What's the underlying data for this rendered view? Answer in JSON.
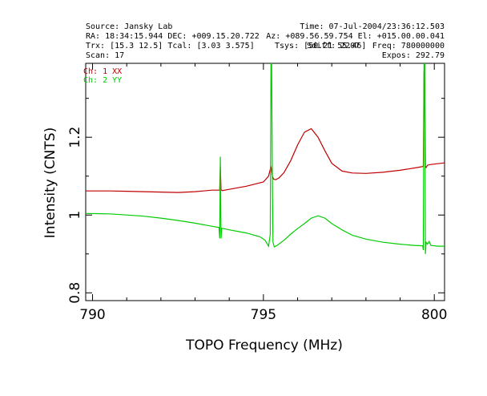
{
  "header": {
    "source": "Source: Jansky Lab",
    "time": "Time: 07-Jul-2004/23:36:12.503",
    "ra_dec": "RA: 18:34:15.944 DEC: +009.15.20.722",
    "az_el": "Az: +089.56.59.754 El: +015.00.00.041",
    "trx_tcal": "Trx: [15.3 12.5]   Tcal: [3.03 3.575]",
    "tsys": "Tsys: [50.21 55.46]",
    "sdiff": "Sdiff: 2207",
    "freq": "Freq: 780000000",
    "scan": "Scan: 17",
    "expos": "Expos: 292.79"
  },
  "chart_data": {
    "type": "line",
    "xlabel": "TOPO Frequency (MHz)",
    "ylabel": "Intensity (CNTS)",
    "xlim": [
      789.8,
      800.3
    ],
    "ylim": [
      0.78,
      1.39
    ],
    "xticks": [
      790,
      795,
      800
    ],
    "xtick_labels": [
      "790",
      "795",
      "800"
    ],
    "yticks": [
      0.8,
      1,
      1.2
    ],
    "ytick_labels": [
      "0.8",
      "1",
      "1.2"
    ],
    "grid": false,
    "legend_position": "top-left",
    "series": [
      {
        "name": "Ch: 1 XX",
        "color": "#c00000",
        "x": [
          789.8,
          790.5,
          791.0,
          791.5,
          792.0,
          792.5,
          793.0,
          793.5,
          793.72,
          793.74,
          793.76,
          793.78,
          793.8,
          794.0,
          794.5,
          795.0,
          795.15,
          795.22,
          795.26,
          795.3,
          795.36,
          795.45,
          795.6,
          795.8,
          796.0,
          796.2,
          796.4,
          796.6,
          796.8,
          797.0,
          797.3,
          797.6,
          798.0,
          798.5,
          799.0,
          799.5,
          799.68,
          799.7,
          799.72,
          799.74,
          799.76,
          799.8,
          799.9,
          800.1,
          800.3
        ],
        "values": [
          1.062,
          1.062,
          1.061,
          1.06,
          1.059,
          1.058,
          1.06,
          1.064,
          1.064,
          1.125,
          1.064,
          1.064,
          1.063,
          1.066,
          1.074,
          1.085,
          1.1,
          1.125,
          1.1,
          1.092,
          1.091,
          1.095,
          1.109,
          1.14,
          1.18,
          1.213,
          1.222,
          1.2,
          1.165,
          1.133,
          1.113,
          1.108,
          1.107,
          1.11,
          1.115,
          1.122,
          1.125,
          1.37,
          1.29,
          1.125,
          1.122,
          1.128,
          1.13,
          1.132,
          1.134
        ]
      },
      {
        "name": "Ch: 2 YY",
        "color": "#00cc00",
        "x": [
          789.8,
          790.5,
          791.0,
          791.5,
          792.0,
          792.5,
          793.0,
          793.5,
          793.7,
          793.72,
          793.74,
          793.76,
          793.78,
          794.0,
          794.5,
          794.9,
          795.05,
          795.15,
          795.2,
          795.22,
          795.24,
          795.26,
          795.28,
          795.32,
          795.4,
          795.6,
          795.8,
          796.0,
          796.2,
          796.4,
          796.6,
          796.8,
          797.0,
          797.3,
          797.6,
          798.0,
          798.5,
          799.0,
          799.4,
          799.66,
          799.68,
          799.7,
          799.72,
          799.74,
          799.76,
          799.8,
          799.85,
          799.9,
          800.1,
          800.3
        ],
        "values": [
          1.004,
          1.003,
          1.0,
          0.997,
          0.992,
          0.986,
          0.979,
          0.971,
          0.968,
          0.94,
          1.15,
          0.94,
          0.966,
          0.962,
          0.954,
          0.944,
          0.935,
          0.92,
          0.95,
          1.39,
          1.39,
          1.1,
          0.93,
          0.918,
          0.922,
          0.935,
          0.951,
          0.965,
          0.978,
          0.992,
          0.998,
          0.992,
          0.978,
          0.962,
          0.948,
          0.938,
          0.93,
          0.925,
          0.922,
          0.921,
          0.91,
          1.39,
          1.39,
          0.9,
          0.93,
          0.925,
          0.932,
          0.922,
          0.92,
          0.92
        ]
      }
    ]
  }
}
